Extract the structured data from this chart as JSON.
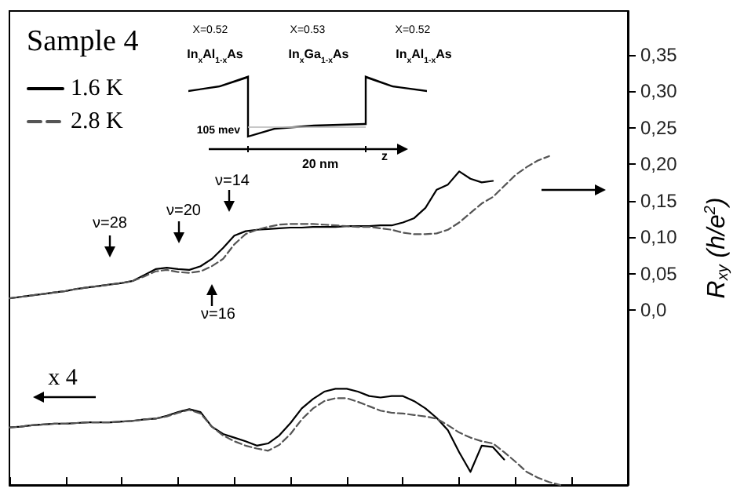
{
  "chart_data": {
    "type": "line",
    "title": "Sample 4",
    "ylabel": "R$_{xy}$ (h/e$^{2}$)",
    "categories": [
      null,
      null,
      null,
      null,
      null,
      null,
      null,
      null,
      null,
      null,
      null,
      null,
      null,
      null,
      null,
      null,
      null,
      null,
      null,
      null,
      null,
      null,
      null,
      null,
      null,
      null,
      null,
      null,
      null,
      null,
      null,
      null,
      null,
      null,
      null,
      null,
      null,
      null,
      null,
      null,
      null,
      null,
      null,
      null,
      null,
      null,
      null,
      null,
      null,
      null,
      null,
      null,
      null,
      null,
      null,
      null
    ],
    "series": [
      {
        "name": "1.6 K",
        "color": "#000000",
        "line_style": "solid",
        "values": [
          0.016,
          0.018,
          0.02,
          0.022,
          0.024,
          0.026,
          0.029,
          0.031,
          0.033,
          0.035,
          0.037,
          0.04,
          0.048,
          0.056,
          0.058,
          0.056,
          0.055,
          0.06,
          0.07,
          0.085,
          0.102,
          0.108,
          0.11,
          0.111,
          0.112,
          0.113,
          0.113,
          0.114,
          0.114,
          0.114,
          0.115,
          0.115,
          0.115,
          0.116,
          0.116,
          0.12,
          0.126,
          0.14,
          0.165,
          0.172,
          0.19,
          0.18,
          0.175,
          0.177,
          null,
          null,
          null,
          null,
          null,
          null,
          null,
          null,
          null,
          null,
          null,
          null
        ]
      },
      {
        "name": "2.8 K",
        "color": "#555555",
        "line_style": "dashed",
        "values": [
          0.016,
          0.018,
          0.02,
          0.022,
          0.024,
          0.026,
          0.029,
          0.031,
          0.033,
          0.035,
          0.037,
          0.04,
          0.046,
          0.053,
          0.055,
          0.052,
          0.051,
          0.053,
          0.06,
          0.07,
          0.09,
          0.104,
          0.11,
          0.114,
          0.117,
          0.118,
          0.118,
          0.118,
          0.117,
          0.116,
          0.115,
          0.114,
          0.114,
          0.112,
          0.11,
          0.106,
          0.104,
          0.104,
          0.105,
          0.11,
          0.12,
          0.133,
          0.146,
          0.155,
          0.17,
          0.185,
          0.196,
          0.205,
          0.211,
          null,
          null,
          null,
          null,
          null,
          null,
          null
        ]
      },
      {
        "color": "#000000",
        "line_style": "solid",
        "values": [
          -0.161,
          -0.16,
          -0.158,
          -0.157,
          -0.156,
          -0.156,
          -0.155,
          -0.154,
          -0.154,
          -0.154,
          -0.153,
          -0.152,
          -0.15,
          -0.149,
          -0.145,
          -0.14,
          -0.136,
          -0.14,
          -0.16,
          -0.17,
          -0.175,
          -0.18,
          -0.186,
          -0.183,
          -0.172,
          -0.155,
          -0.135,
          -0.122,
          -0.112,
          -0.108,
          -0.108,
          -0.112,
          -0.118,
          -0.12,
          -0.118,
          -0.118,
          -0.125,
          -0.135,
          -0.148,
          -0.165,
          -0.195,
          -0.222,
          -0.186,
          -0.188,
          -0.205,
          null,
          null,
          null,
          null,
          null,
          null,
          null,
          null,
          null,
          null,
          null
        ]
      },
      {
        "color": "#555555",
        "line_style": "dashed",
        "values": [
          -0.161,
          -0.16,
          -0.158,
          -0.157,
          -0.156,
          -0.156,
          -0.155,
          -0.154,
          -0.154,
          -0.154,
          -0.153,
          -0.152,
          -0.15,
          -0.149,
          -0.146,
          -0.141,
          -0.137,
          -0.142,
          -0.16,
          -0.172,
          -0.18,
          -0.186,
          -0.19,
          -0.193,
          -0.185,
          -0.17,
          -0.15,
          -0.135,
          -0.125,
          -0.121,
          -0.121,
          -0.126,
          -0.132,
          -0.138,
          -0.141,
          -0.142,
          -0.144,
          -0.146,
          -0.149,
          -0.158,
          -0.168,
          -0.175,
          -0.18,
          -0.183,
          -0.195,
          -0.208,
          -0.222,
          -0.23,
          -0.236,
          -0.24,
          null,
          null,
          null,
          null,
          null,
          null
        ]
      }
    ],
    "ylim": [
      -0.24,
      0.41
    ],
    "yticks": [
      {
        "value": 0,
        "label": "0,0"
      },
      {
        "value": 0.05,
        "label": "0,05"
      },
      {
        "value": 0.1,
        "label": "0,10"
      },
      {
        "value": 0.15,
        "label": "0,15"
      },
      {
        "value": 0.2,
        "label": "0,20"
      },
      {
        "value": 0.25,
        "label": "0,25"
      },
      {
        "value": 0.3,
        "label": "0,30"
      },
      {
        "value": 0.35,
        "label": "0,35"
      }
    ],
    "tick_labels": "y",
    "legend": "top left",
    "annotations": [
      "ν=28",
      "ν=20",
      "ν=14",
      "ν=16",
      "x 4",
      "X=0.52",
      "X=0.53",
      "X=0.52",
      "In$_{x}$Al$_{1-x}$As",
      "In$_{x}$Ga$_{1-x}$As",
      "In$_{x}$Al$_{1-x}$As",
      "105 mev",
      "20 nm",
      "z"
    ]
  }
}
